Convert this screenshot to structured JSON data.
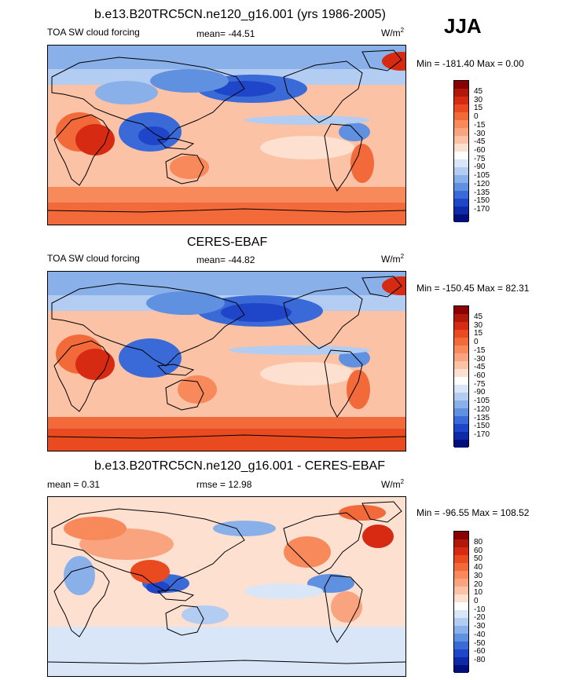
{
  "season": "JJA",
  "panels": [
    {
      "title": "b.e13.B20TRC5CN.ne120_g16.001 (yrs 1986-2005)",
      "left_label": "TOA SW cloud forcing",
      "center_label": "mean= -44.51",
      "units": "W/m",
      "units_sup": "2",
      "minmax": "Min = -181.40 Max =   0.00",
      "levels": [
        "45",
        "30",
        "15",
        "0",
        "-15",
        "-30",
        "-45",
        "-60",
        "-75",
        "-90",
        "-105",
        "-120",
        "-135",
        "-150",
        "-170"
      ],
      "colors": [
        "#8b0000",
        "#b0180a",
        "#d62a12",
        "#ea4a1f",
        "#f36a3a",
        "#f7895a",
        "#f9a47f",
        "#fbc2a6",
        "#fde0cf",
        "#ffffff",
        "#d8e6f7",
        "#b2cdf1",
        "#8ab0ea",
        "#6090e0",
        "#3a6ad8",
        "#1f45c8",
        "#0f2aa8",
        "#000f7a"
      ]
    },
    {
      "title": "CERES-EBAF",
      "left_label": "TOA SW cloud forcing",
      "center_label": "mean= -44.82",
      "units": "W/m",
      "units_sup": "2",
      "minmax": "Min = -150.45 Max =  82.31",
      "levels": [
        "45",
        "30",
        "15",
        "0",
        "-15",
        "-30",
        "-45",
        "-60",
        "-75",
        "-90",
        "-105",
        "-120",
        "-135",
        "-150",
        "-170"
      ],
      "colors": [
        "#8b0000",
        "#b0180a",
        "#d62a12",
        "#ea4a1f",
        "#f36a3a",
        "#f7895a",
        "#f9a47f",
        "#fbc2a6",
        "#fde0cf",
        "#ffffff",
        "#d8e6f7",
        "#b2cdf1",
        "#8ab0ea",
        "#6090e0",
        "#3a6ad8",
        "#1f45c8",
        "#0f2aa8",
        "#000f7a"
      ]
    },
    {
      "title": "b.e13.B20TRC5CN.ne120_g16.001 - CERES-EBAF",
      "left_label": "mean =   0.31",
      "center_label": "rmse =  12.98",
      "units": "W/m",
      "units_sup": "2",
      "minmax": "Min = -96.55 Max = 108.52",
      "levels": [
        "80",
        "60",
        "50",
        "40",
        "30",
        "20",
        "10",
        "0",
        "-10",
        "-20",
        "-30",
        "-40",
        "-50",
        "-60",
        "-80"
      ],
      "colors": [
        "#8b0000",
        "#b0180a",
        "#d62a12",
        "#ea4a1f",
        "#f36a3a",
        "#f7895a",
        "#f9a47f",
        "#fbc2a6",
        "#fde0cf",
        "#ffffff",
        "#d8e6f7",
        "#b2cdf1",
        "#8ab0ea",
        "#6090e0",
        "#3a6ad8",
        "#1f45c8",
        "#0f2aa8",
        "#000f7a"
      ]
    }
  ]
}
